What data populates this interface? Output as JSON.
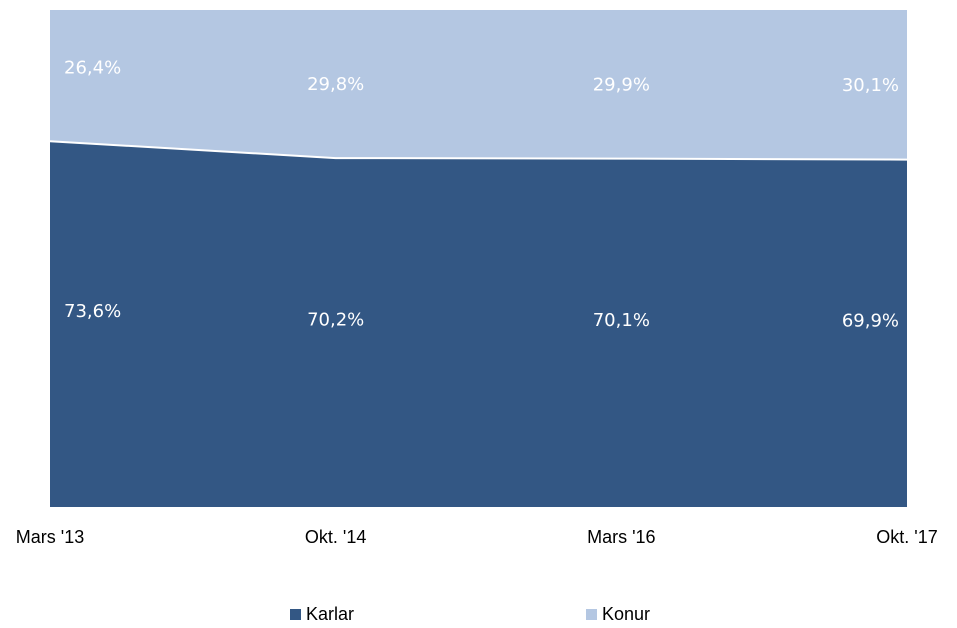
{
  "chart_data": {
    "type": "area",
    "stacked": true,
    "percent": true,
    "categories": [
      "Mars '13",
      "Okt. '14",
      "Mars '16",
      "Okt. '17"
    ],
    "series": [
      {
        "name": "Karlar",
        "color": "#335784",
        "values": [
          73.6,
          70.2,
          70.1,
          69.9
        ],
        "labels": [
          "73,6%",
          "70,2%",
          "70,1%",
          "69,9%"
        ]
      },
      {
        "name": "Konur",
        "color": "#b4c7e2",
        "values": [
          26.4,
          29.8,
          29.9,
          30.1
        ],
        "labels": [
          "26,4%",
          "29,8%",
          "29,9%",
          "30,1%"
        ]
      }
    ],
    "ylim": [
      0,
      100
    ],
    "grid": false,
    "legend_position": "bottom"
  }
}
